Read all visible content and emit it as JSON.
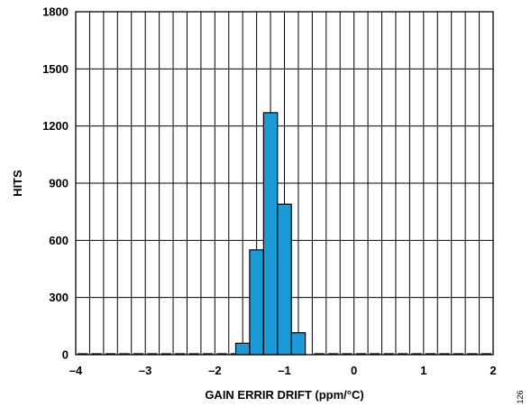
{
  "chart_data": {
    "type": "bar",
    "title": "",
    "xlabel": "GAIN ERRIR DRIFT (ppm/°C)",
    "ylabel": "HITS",
    "xlim": [
      -4,
      2
    ],
    "ylim": [
      0,
      1800
    ],
    "xticks": [
      -4,
      -3,
      -2,
      -1,
      0,
      1,
      2
    ],
    "xtick_labels": [
      "–4",
      "–3",
      "–2",
      "–1",
      "0",
      "1",
      "2"
    ],
    "yticks": [
      0,
      300,
      600,
      900,
      1200,
      1500,
      1800
    ],
    "ytick_labels": [
      "0",
      "300",
      "600",
      "900",
      "1200",
      "1500",
      "1800"
    ],
    "grid": true,
    "bin_width": 0.2,
    "bins": [
      {
        "x0": -1.7,
        "x1": -1.5,
        "value": 60
      },
      {
        "x0": -1.5,
        "x1": -1.3,
        "value": 550
      },
      {
        "x0": -1.3,
        "x1": -1.1,
        "value": 1270
      },
      {
        "x0": -1.1,
        "x1": -0.9,
        "value": 790
      },
      {
        "x0": -0.9,
        "x1": -0.7,
        "value": 115
      }
    ],
    "bar_color": "#1a9bd7",
    "figure_number": "126"
  }
}
